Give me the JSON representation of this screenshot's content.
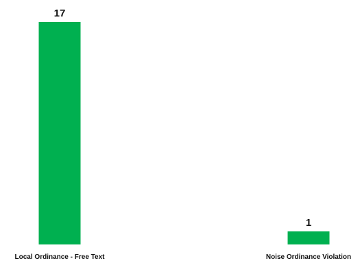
{
  "chart_data": {
    "type": "bar",
    "categories": [
      "Local Ordinance - Free Text",
      "Noise Ordinance Violation"
    ],
    "values": [
      17,
      1
    ],
    "ylim": [
      0,
      17
    ],
    "grid": false,
    "legend": "none",
    "bar_color": "#00b050",
    "show_data_labels": true
  }
}
